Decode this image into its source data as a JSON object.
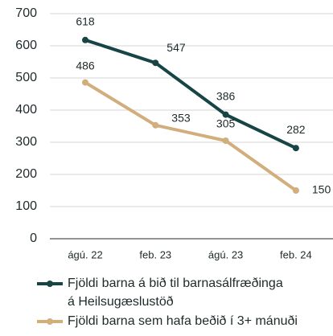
{
  "chart_data": {
    "type": "line",
    "categories": [
      "ágú. 22",
      "feb. 23",
      "ágú. 23",
      "feb. 24"
    ],
    "series": [
      {
        "name": "Fjöldi barna á bið til barnasálfræðinga á Heilsugæslustöð",
        "color": "#174545",
        "values": [
          618,
          547,
          386,
          282
        ]
      },
      {
        "name": "Fjöldi barna sem hafa beðið í 3+ mánuði",
        "color": "#d1ae7c",
        "values": [
          486,
          353,
          305,
          150
        ]
      }
    ],
    "ylim": [
      0,
      700
    ],
    "yticks": [
      0,
      100,
      200,
      300,
      400,
      500,
      600,
      700
    ],
    "grid": true,
    "legend": "bottom"
  }
}
